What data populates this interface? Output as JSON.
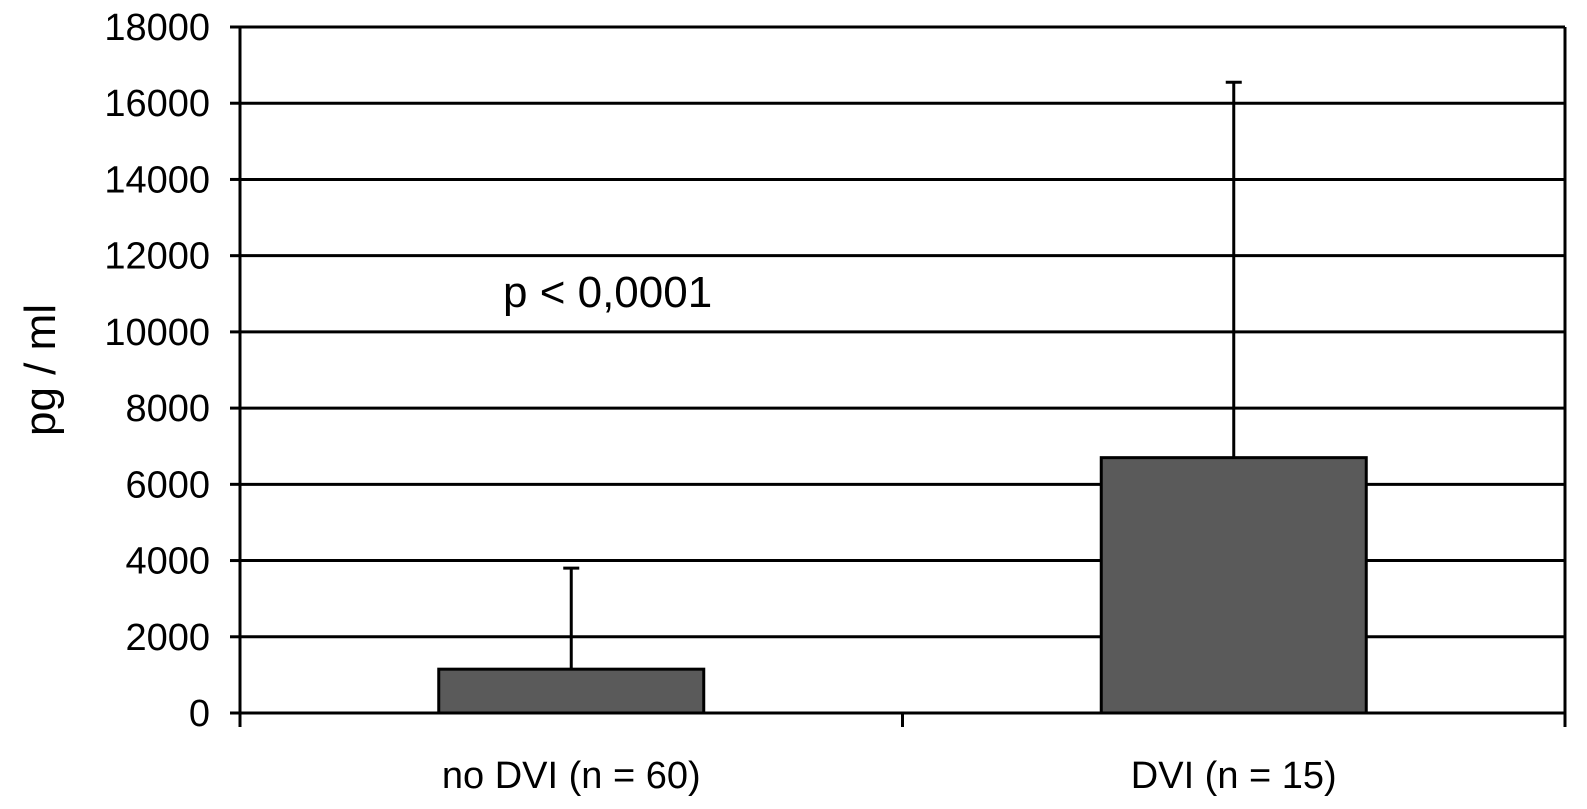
{
  "chart_data": {
    "type": "bar",
    "title": "",
    "xlabel": "",
    "ylabel": "pg / ml",
    "ylim": [
      0,
      18000
    ],
    "y_ticks": [
      0,
      2000,
      4000,
      6000,
      8000,
      10000,
      12000,
      14000,
      16000,
      18000
    ],
    "grid": true,
    "categories": [
      "no DVI (n = 60)",
      "DVI (n = 15)"
    ],
    "values": [
      1150,
      6700
    ],
    "error_upper": [
      3800,
      16550
    ],
    "annotation": "p < 0,0001",
    "colors": {
      "bar_fill": "#5a5a5a",
      "bar_stroke": "#000000",
      "grid": "#000000",
      "background": "#ffffff"
    }
  }
}
